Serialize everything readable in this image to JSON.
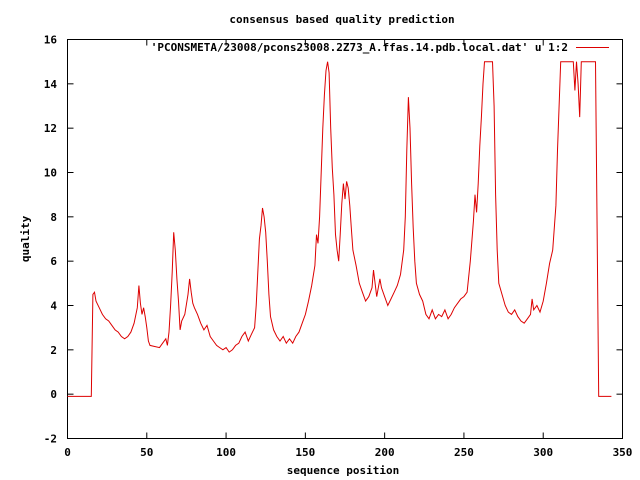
{
  "chart_data": {
    "type": "line",
    "title": "consensus based quality prediction",
    "xlabel": "sequence position",
    "ylabel": "quality",
    "xlim": [
      0,
      350
    ],
    "ylim": [
      -2,
      16
    ],
    "xticks": [
      0,
      50,
      100,
      150,
      200,
      250,
      300,
      350
    ],
    "yticks": [
      -2,
      0,
      2,
      4,
      6,
      8,
      10,
      12,
      14,
      16
    ],
    "grid": false,
    "legend_position": "top-right",
    "series": [
      {
        "name": "'PCONSMETA/23008/pcons23008.2Z73_A.ffas.14.pdb.local.dat' u 1:2",
        "color": "#dd0000",
        "points": [
          [
            0,
            -0.1
          ],
          [
            15,
            -0.1
          ],
          [
            16,
            4.5
          ],
          [
            17,
            4.6
          ],
          [
            18,
            4.2
          ],
          [
            20,
            3.9
          ],
          [
            22,
            3.6
          ],
          [
            24,
            3.4
          ],
          [
            26,
            3.3
          ],
          [
            28,
            3.1
          ],
          [
            30,
            2.9
          ],
          [
            32,
            2.8
          ],
          [
            34,
            2.6
          ],
          [
            36,
            2.5
          ],
          [
            38,
            2.6
          ],
          [
            40,
            2.8
          ],
          [
            42,
            3.2
          ],
          [
            44,
            3.9
          ],
          [
            45,
            4.9
          ],
          [
            46,
            4.1
          ],
          [
            47,
            3.6
          ],
          [
            48,
            3.9
          ],
          [
            49,
            3.5
          ],
          [
            50,
            3.0
          ],
          [
            51,
            2.4
          ],
          [
            52,
            2.2
          ],
          [
            55,
            2.15
          ],
          [
            58,
            2.1
          ],
          [
            60,
            2.3
          ],
          [
            62,
            2.5
          ],
          [
            63,
            2.2
          ],
          [
            64,
            2.8
          ],
          [
            65,
            4.0
          ],
          [
            66,
            5.5
          ],
          [
            67,
            7.3
          ],
          [
            68,
            6.5
          ],
          [
            69,
            5.2
          ],
          [
            70,
            4.2
          ],
          [
            71,
            2.9
          ],
          [
            72,
            3.3
          ],
          [
            74,
            3.6
          ],
          [
            76,
            4.5
          ],
          [
            77,
            5.2
          ],
          [
            78,
            4.6
          ],
          [
            79,
            4.1
          ],
          [
            80,
            3.9
          ],
          [
            82,
            3.6
          ],
          [
            84,
            3.2
          ],
          [
            86,
            2.9
          ],
          [
            88,
            3.1
          ],
          [
            90,
            2.6
          ],
          [
            92,
            2.4
          ],
          [
            94,
            2.2
          ],
          [
            96,
            2.1
          ],
          [
            98,
            2.0
          ],
          [
            100,
            2.1
          ],
          [
            102,
            1.9
          ],
          [
            104,
            2.0
          ],
          [
            106,
            2.2
          ],
          [
            108,
            2.3
          ],
          [
            110,
            2.6
          ],
          [
            112,
            2.8
          ],
          [
            114,
            2.4
          ],
          [
            116,
            2.7
          ],
          [
            118,
            3.0
          ],
          [
            119,
            4.0
          ],
          [
            120,
            5.5
          ],
          [
            121,
            7.0
          ],
          [
            122,
            7.6
          ],
          [
            123,
            8.4
          ],
          [
            124,
            8.0
          ],
          [
            125,
            7.3
          ],
          [
            126,
            6.0
          ],
          [
            127,
            4.5
          ],
          [
            128,
            3.5
          ],
          [
            130,
            2.9
          ],
          [
            132,
            2.6
          ],
          [
            134,
            2.4
          ],
          [
            136,
            2.6
          ],
          [
            138,
            2.3
          ],
          [
            140,
            2.5
          ],
          [
            142,
            2.3
          ],
          [
            144,
            2.6
          ],
          [
            146,
            2.8
          ],
          [
            148,
            3.2
          ],
          [
            150,
            3.6
          ],
          [
            152,
            4.2
          ],
          [
            154,
            4.9
          ],
          [
            156,
            5.8
          ],
          [
            157,
            7.2
          ],
          [
            158,
            6.8
          ],
          [
            159,
            8.0
          ],
          [
            160,
            10.0
          ],
          [
            161,
            12.0
          ],
          [
            162,
            13.5
          ],
          [
            163,
            14.6
          ],
          [
            164,
            15.0
          ],
          [
            165,
            14.5
          ],
          [
            166,
            12.0
          ],
          [
            167,
            10.2
          ],
          [
            168,
            9.0
          ],
          [
            169,
            7.2
          ],
          [
            170,
            6.5
          ],
          [
            171,
            6.0
          ],
          [
            172,
            7.2
          ],
          [
            173,
            8.6
          ],
          [
            174,
            9.5
          ],
          [
            175,
            8.8
          ],
          [
            176,
            9.6
          ],
          [
            177,
            9.3
          ],
          [
            178,
            8.5
          ],
          [
            179,
            7.5
          ],
          [
            180,
            6.5
          ],
          [
            182,
            5.8
          ],
          [
            184,
            5.0
          ],
          [
            186,
            4.6
          ],
          [
            188,
            4.2
          ],
          [
            190,
            4.4
          ],
          [
            192,
            4.8
          ],
          [
            193,
            5.6
          ],
          [
            194,
            5.0
          ],
          [
            195,
            4.4
          ],
          [
            196,
            4.8
          ],
          [
            197,
            5.2
          ],
          [
            198,
            4.8
          ],
          [
            200,
            4.4
          ],
          [
            202,
            4.0
          ],
          [
            204,
            4.3
          ],
          [
            206,
            4.6
          ],
          [
            208,
            4.9
          ],
          [
            210,
            5.4
          ],
          [
            212,
            6.5
          ],
          [
            213,
            8.0
          ],
          [
            214,
            11.0
          ],
          [
            215,
            13.4
          ],
          [
            216,
            12.0
          ],
          [
            217,
            9.5
          ],
          [
            218,
            7.5
          ],
          [
            219,
            6.0
          ],
          [
            220,
            5.0
          ],
          [
            222,
            4.5
          ],
          [
            224,
            4.2
          ],
          [
            226,
            3.6
          ],
          [
            228,
            3.4
          ],
          [
            230,
            3.8
          ],
          [
            232,
            3.4
          ],
          [
            234,
            3.6
          ],
          [
            236,
            3.5
          ],
          [
            238,
            3.8
          ],
          [
            240,
            3.4
          ],
          [
            242,
            3.6
          ],
          [
            244,
            3.9
          ],
          [
            246,
            4.1
          ],
          [
            248,
            4.3
          ],
          [
            250,
            4.4
          ],
          [
            252,
            4.6
          ],
          [
            254,
            6.0
          ],
          [
            256,
            7.8
          ],
          [
            257,
            9.0
          ],
          [
            258,
            8.2
          ],
          [
            259,
            9.5
          ],
          [
            260,
            11.2
          ],
          [
            261,
            12.5
          ],
          [
            262,
            14.0
          ],
          [
            263,
            15.0
          ],
          [
            268,
            15.0
          ],
          [
            269,
            13.0
          ],
          [
            270,
            9.0
          ],
          [
            271,
            6.5
          ],
          [
            272,
            5.0
          ],
          [
            274,
            4.5
          ],
          [
            276,
            4.0
          ],
          [
            278,
            3.7
          ],
          [
            280,
            3.6
          ],
          [
            282,
            3.8
          ],
          [
            284,
            3.5
          ],
          [
            286,
            3.3
          ],
          [
            288,
            3.2
          ],
          [
            290,
            3.4
          ],
          [
            292,
            3.6
          ],
          [
            293,
            4.3
          ],
          [
            294,
            3.8
          ],
          [
            296,
            4.0
          ],
          [
            298,
            3.7
          ],
          [
            300,
            4.2
          ],
          [
            302,
            5.0
          ],
          [
            304,
            5.9
          ],
          [
            306,
            6.5
          ],
          [
            308,
            8.5
          ],
          [
            309,
            11.0
          ],
          [
            310,
            13.0
          ],
          [
            311,
            15.0
          ],
          [
            319,
            15.0
          ],
          [
            320,
            13.7
          ],
          [
            321,
            15.0
          ],
          [
            322,
            14.0
          ],
          [
            323,
            12.5
          ],
          [
            324,
            15.0
          ],
          [
            333,
            15.0
          ],
          [
            334,
            7.5
          ],
          [
            335,
            -0.1
          ],
          [
            343,
            -0.1
          ]
        ]
      }
    ]
  }
}
